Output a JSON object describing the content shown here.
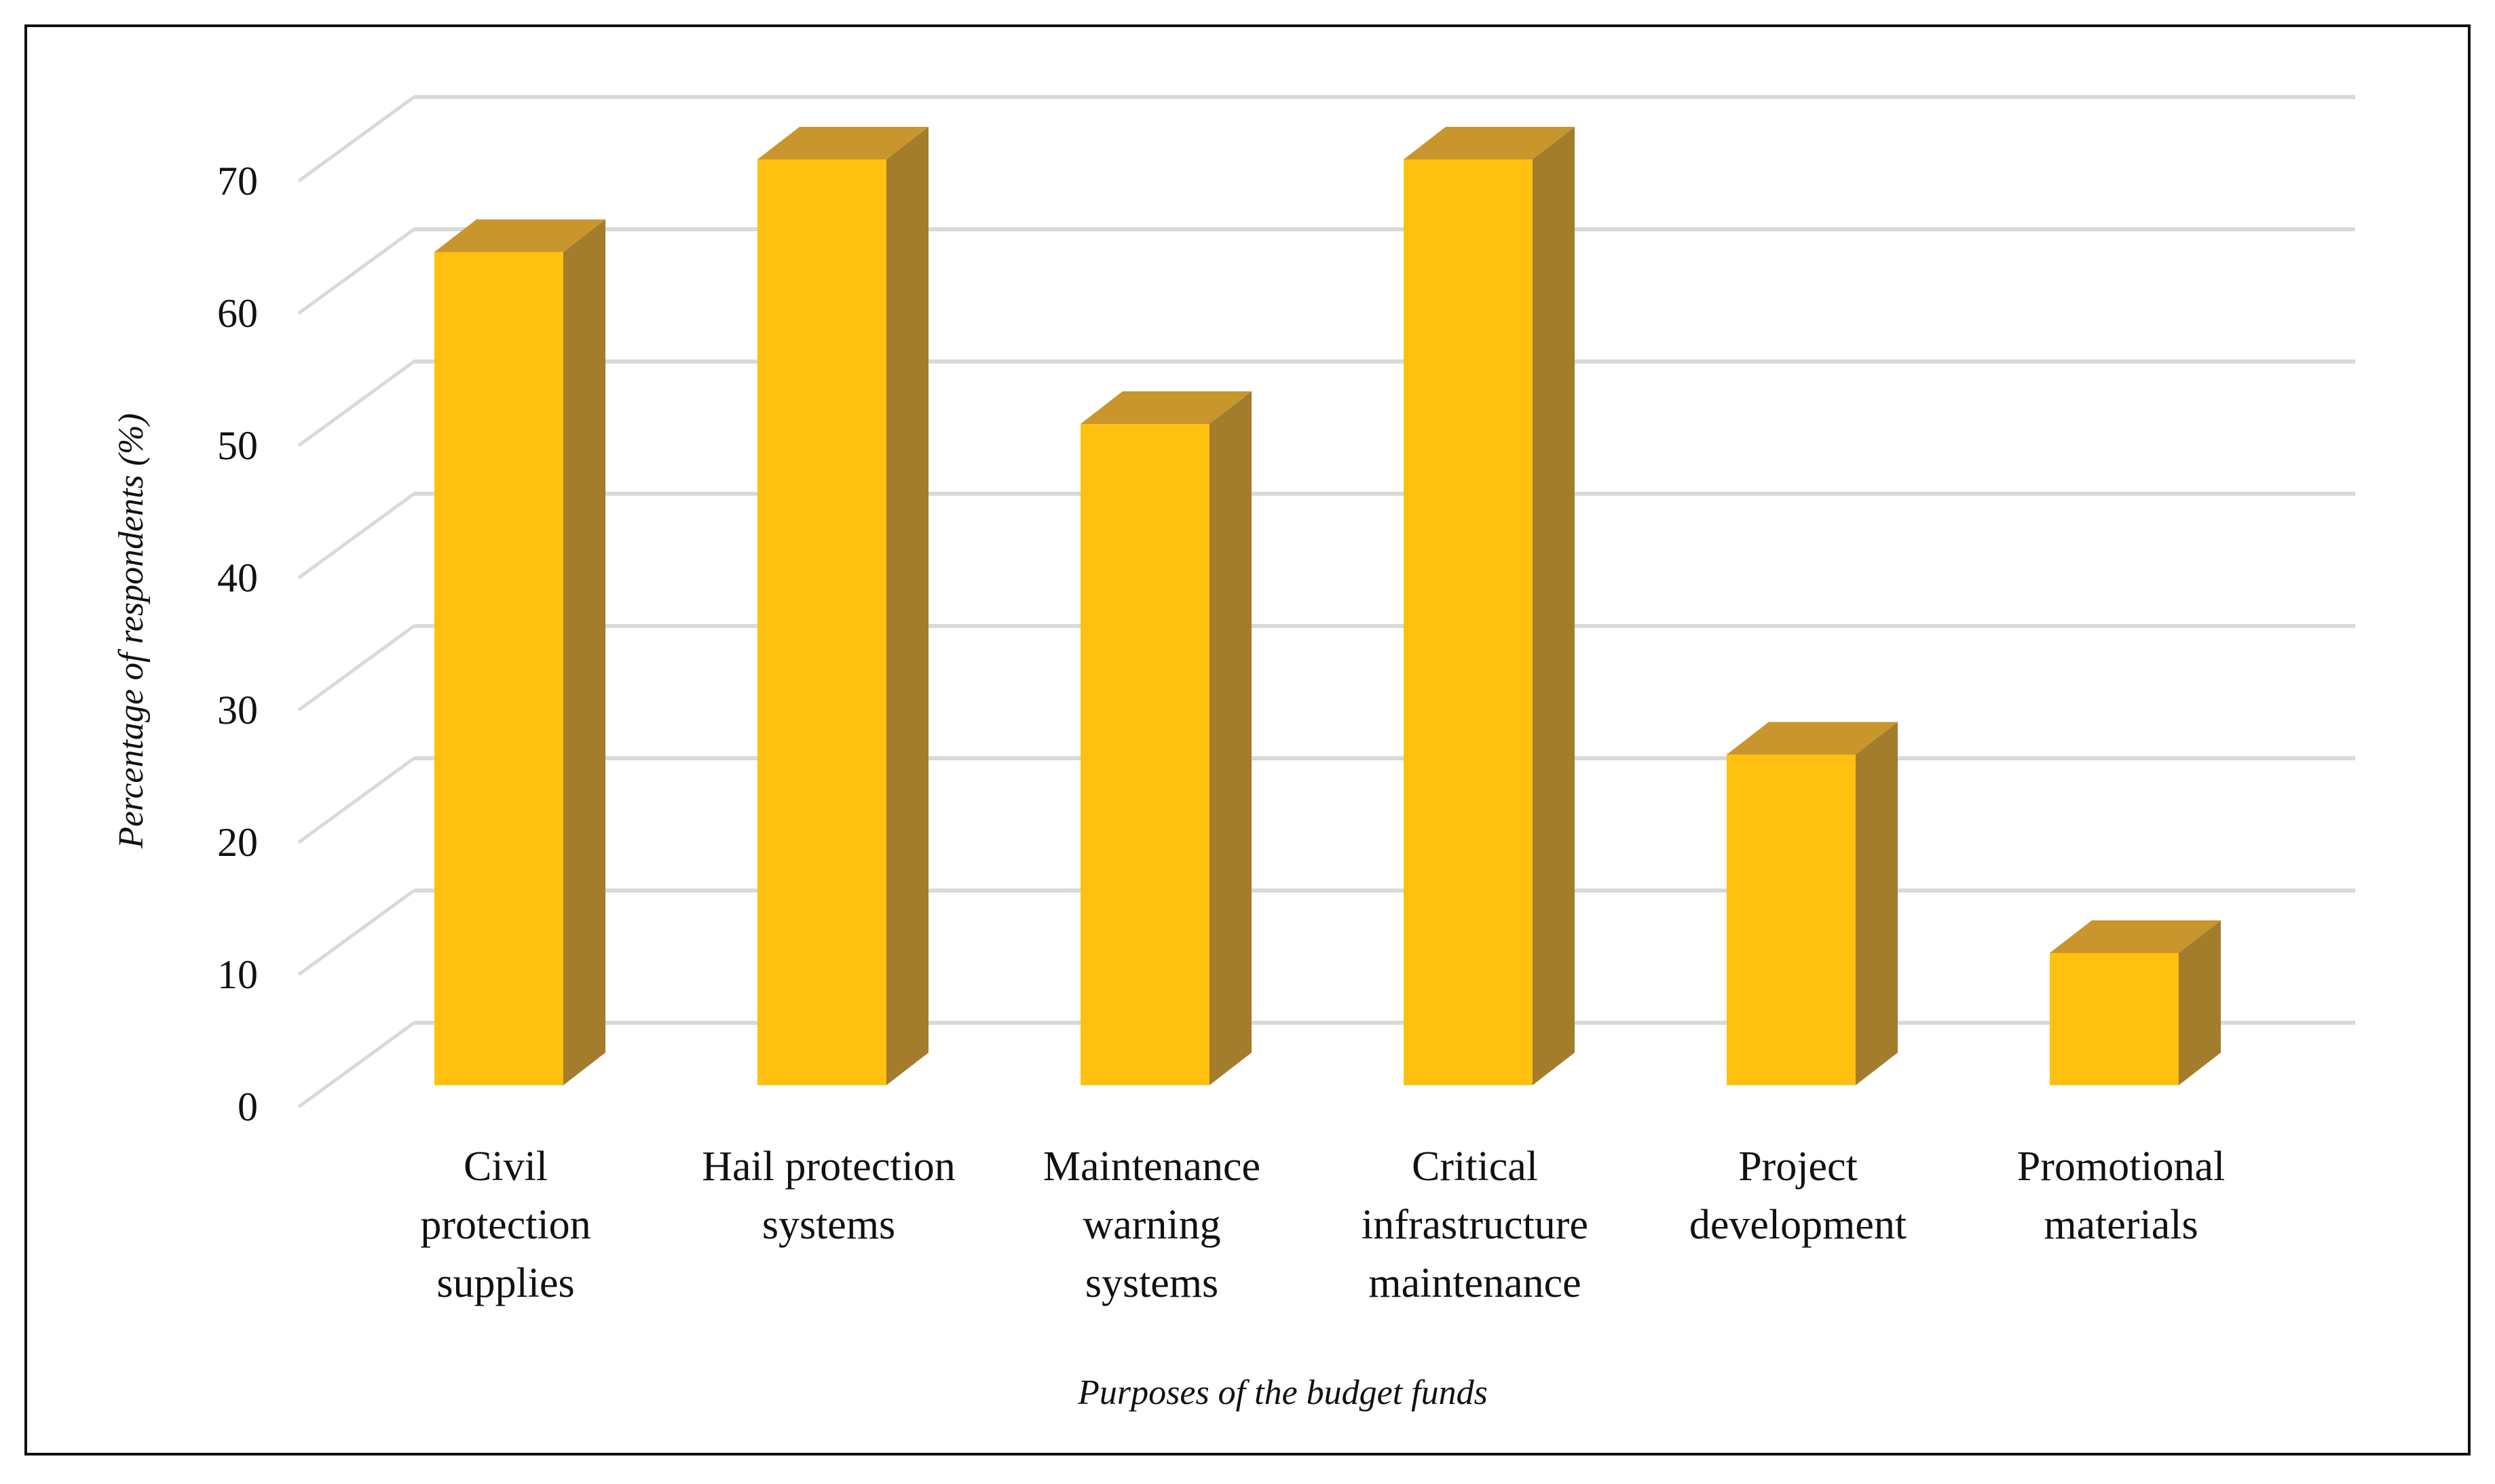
{
  "chart_data": {
    "type": "bar",
    "style": "3d-column",
    "categories": [
      [
        "Civil",
        "protection",
        "supplies"
      ],
      [
        "Hail protection",
        "systems"
      ],
      [
        "Maintenance",
        "warning",
        "systems"
      ],
      [
        "Critical",
        "infrastructure",
        "maintenance"
      ],
      [
        "Project",
        "development"
      ],
      [
        "Promotional",
        "materials"
      ]
    ],
    "values": [
      63,
      70,
      50,
      70,
      25,
      10
    ],
    "title": "",
    "xlabel": "Purposes of the budget funds",
    "ylabel": "Percentage  of respondents (%)",
    "ylim": [
      0,
      70
    ],
    "yticks": [
      "0",
      "10",
      "20",
      "30",
      "40",
      "50",
      "60",
      "70"
    ],
    "grid": true,
    "legend": "none",
    "colors": {
      "bar_front": "#FFC010",
      "bar_top": "#C8962C",
      "bar_side": "#A37C2C",
      "gridline": "#D9D9D9"
    }
  }
}
